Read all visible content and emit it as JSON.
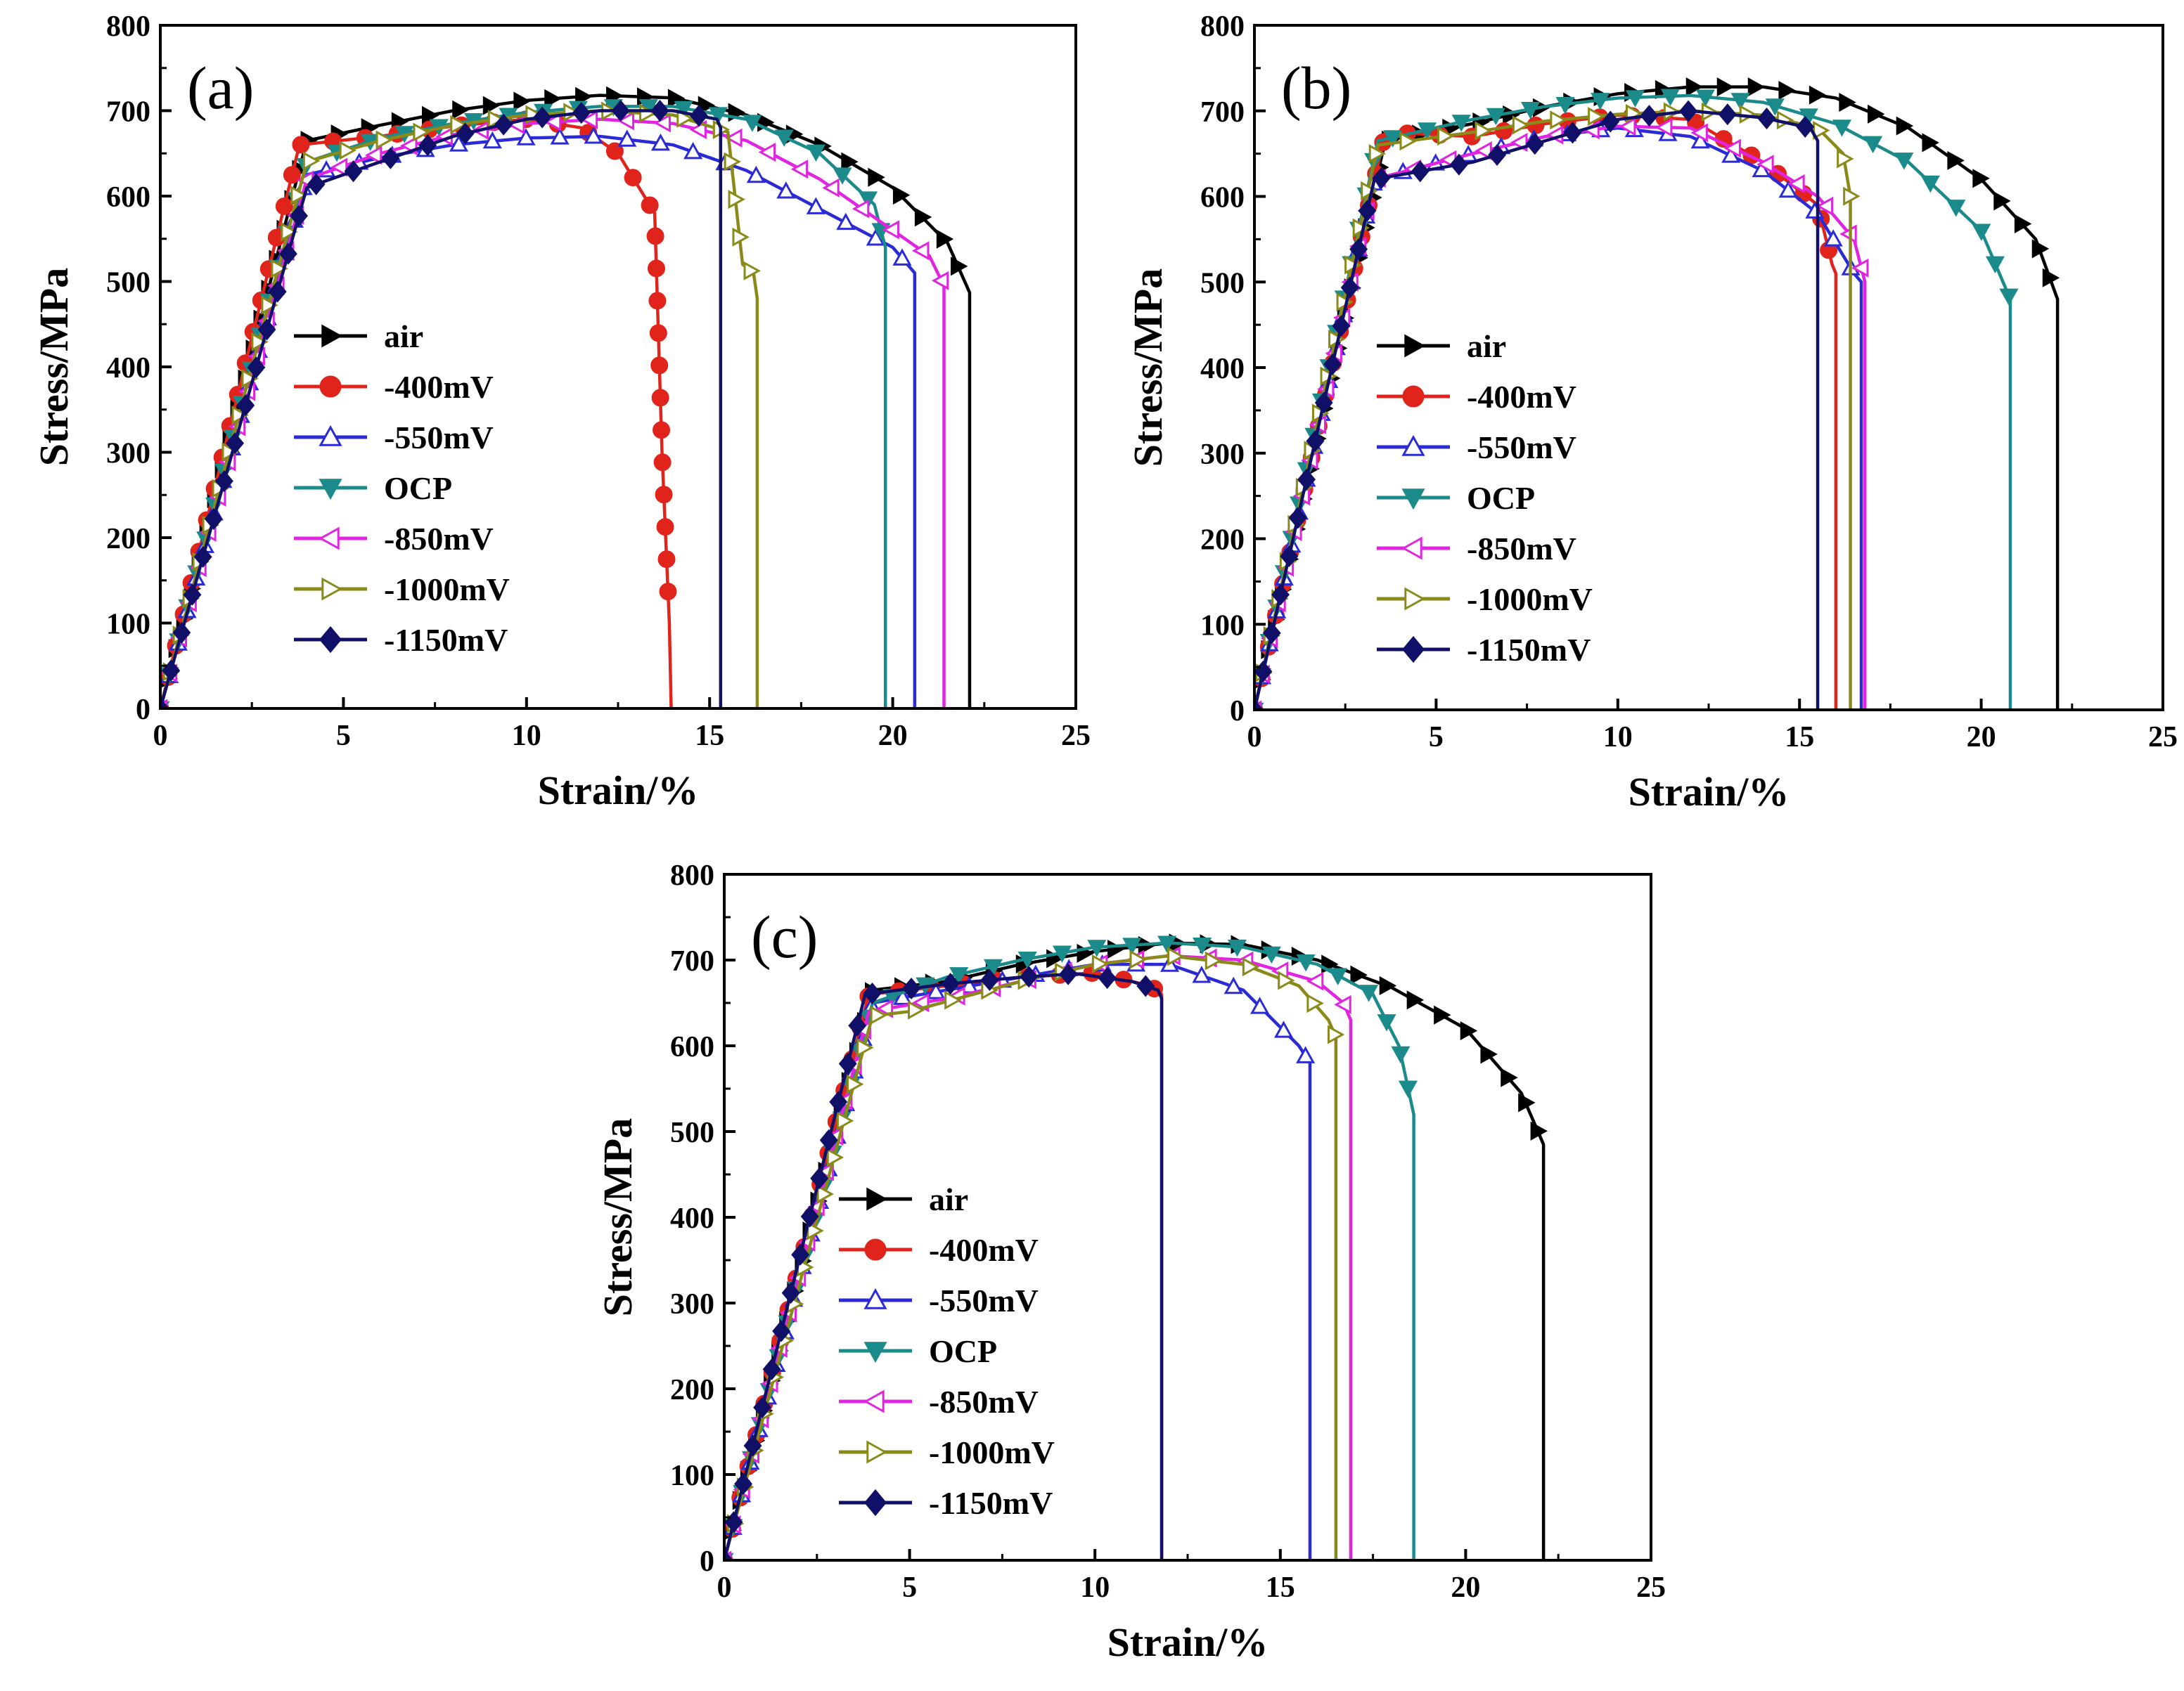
{
  "figure": {
    "background": "#ffffff"
  },
  "chart_data": [
    {
      "panel_label": "(a)",
      "type": "line",
      "xlabel": "Strain/%",
      "ylabel": "Stress/MPa",
      "xlim": [
        0,
        25
      ],
      "ylim": [
        0,
        800
      ],
      "xticks": [
        0,
        5,
        10,
        15,
        20,
        25
      ],
      "yticks": [
        0,
        100,
        200,
        300,
        400,
        500,
        600,
        700,
        800
      ],
      "grid": false,
      "legend": "center-left",
      "series": [
        {
          "name": "air",
          "color": "#000000",
          "marker": "triangle-right",
          "x": [
            0,
            4.0,
            6,
            8,
            10,
            12,
            14,
            16,
            18,
            20,
            21.5,
            22.1,
            22.1
          ],
          "y": [
            0,
            665,
            683,
            700,
            712,
            718,
            715,
            695,
            660,
            610,
            545,
            487,
            0
          ]
        },
        {
          "name": "-400mV",
          "color": "#e0241b",
          "marker": "circle",
          "x": [
            0,
            3.8,
            6,
            8,
            10,
            11.5,
            12.5,
            13.5,
            13.7,
            13.9,
            13.95
          ],
          "y": [
            0,
            660,
            670,
            682,
            690,
            680,
            650,
            580,
            300,
            100,
            0
          ]
        },
        {
          "name": "-550mV",
          "color": "#2b2bd6",
          "marker": "triangle-up-open",
          "x": [
            0,
            4.0,
            6,
            8,
            10,
            12,
            14,
            16,
            18,
            20,
            20.6,
            20.6
          ],
          "y": [
            0,
            625,
            645,
            660,
            668,
            670,
            660,
            630,
            585,
            540,
            510,
            0
          ]
        },
        {
          "name": "OCP",
          "color": "#1a8a8a",
          "marker": "triangle-down",
          "x": [
            0,
            4.0,
            6,
            8,
            10,
            12,
            14,
            16,
            18,
            19.5,
            19.8,
            19.8
          ],
          "y": [
            0,
            640,
            668,
            685,
            698,
            705,
            705,
            690,
            650,
            590,
            540,
            0
          ]
        },
        {
          "name": "-850mV",
          "color": "#e024e0",
          "marker": "triangle-left-open",
          "x": [
            0,
            4.0,
            6,
            8,
            10,
            12,
            14,
            16,
            18,
            20,
            21.0,
            21.4,
            21.4
          ],
          "y": [
            0,
            620,
            650,
            672,
            685,
            690,
            685,
            665,
            620,
            560,
            530,
            495,
            0
          ]
        },
        {
          "name": "-1000mV",
          "color": "#8a8a1a",
          "marker": "triangle-right-open",
          "x": [
            0,
            4.0,
            6,
            8,
            10,
            12,
            14,
            15.5,
            15.9,
            16.2,
            16.3,
            16.3
          ],
          "y": [
            0,
            640,
            665,
            683,
            695,
            700,
            695,
            675,
            520,
            510,
            480,
            0
          ]
        },
        {
          "name": "-1150mV",
          "color": "#101068",
          "marker": "diamond",
          "x": [
            0,
            4.0,
            6,
            8,
            10,
            12,
            14,
            15.2,
            15.3,
            15.3
          ],
          "y": [
            0,
            610,
            640,
            670,
            690,
            700,
            700,
            690,
            680,
            0
          ]
        }
      ]
    },
    {
      "panel_label": "(b)",
      "type": "line",
      "xlabel": "Strain/%",
      "ylabel": "Stress/MPa",
      "xlim": [
        0,
        25
      ],
      "ylim": [
        0,
        800
      ],
      "xticks": [
        0,
        5,
        10,
        15,
        20,
        25
      ],
      "yticks": [
        0,
        100,
        200,
        300,
        400,
        500,
        600,
        700,
        800
      ],
      "grid": false,
      "legend": "center-left",
      "series": [
        {
          "name": "air",
          "color": "#000000",
          "marker": "triangle-right",
          "x": [
            0,
            3.6,
            6,
            8,
            10,
            12,
            14,
            16,
            18,
            20,
            21.5,
            22.1,
            22.1
          ],
          "y": [
            0,
            665,
            685,
            705,
            720,
            728,
            728,
            715,
            680,
            620,
            550,
            480,
            0
          ]
        },
        {
          "name": "-400mV",
          "color": "#e0241b",
          "marker": "circle",
          "x": [
            0,
            3.6,
            6,
            8,
            10,
            12,
            14,
            15.5,
            15.9,
            16.0,
            16.0
          ],
          "y": [
            0,
            675,
            670,
            685,
            695,
            690,
            640,
            590,
            520,
            510,
            0
          ]
        },
        {
          "name": "-550mV",
          "color": "#2b2bd6",
          "marker": "triangle-up-open",
          "x": [
            0,
            3.3,
            6,
            8,
            10,
            12,
            14,
            15.5,
            16.5,
            16.7,
            16.7
          ],
          "y": [
            0,
            620,
            650,
            670,
            680,
            670,
            630,
            580,
            510,
            500,
            0
          ]
        },
        {
          "name": "OCP",
          "color": "#1a8a8a",
          "marker": "triangle-down",
          "x": [
            0,
            3.4,
            6,
            8,
            10,
            12,
            14,
            16,
            18,
            20,
            20.8,
            20.8
          ],
          "y": [
            0,
            665,
            690,
            705,
            715,
            718,
            710,
            685,
            640,
            560,
            480,
            0
          ]
        },
        {
          "name": "-850mV",
          "color": "#e024e0",
          "marker": "triangle-left-open",
          "x": [
            0,
            3.3,
            6,
            8,
            10,
            12,
            14,
            15.5,
            16.5,
            16.8,
            16.8
          ],
          "y": [
            0,
            620,
            650,
            670,
            682,
            680,
            640,
            600,
            550,
            500,
            0
          ]
        },
        {
          "name": "-1000mV",
          "color": "#8a8a1a",
          "marker": "triangle-right-open",
          "x": [
            0,
            3.4,
            6,
            8,
            10,
            12,
            14,
            15.5,
            16.2,
            16.4,
            16.4
          ],
          "y": [
            0,
            660,
            675,
            688,
            696,
            700,
            695,
            680,
            650,
            600,
            0
          ]
        },
        {
          "name": "-1150mV",
          "color": "#101068",
          "marker": "diamond",
          "x": [
            0,
            3.3,
            6,
            8,
            10,
            12,
            14,
            15.3,
            15.5,
            15.5
          ],
          "y": [
            0,
            620,
            640,
            665,
            690,
            700,
            692,
            680,
            665,
            0
          ]
        }
      ]
    },
    {
      "panel_label": "(c)",
      "type": "line",
      "xlabel": "Strain/%",
      "ylabel": "Stress/MPa",
      "xlim": [
        0,
        25
      ],
      "ylim": [
        0,
        800
      ],
      "xticks": [
        0,
        5,
        10,
        15,
        20,
        25
      ],
      "yticks": [
        0,
        100,
        200,
        300,
        400,
        500,
        600,
        700,
        800
      ],
      "grid": false,
      "legend": "center-left",
      "series": [
        {
          "name": "air",
          "color": "#000000",
          "marker": "triangle-right",
          "x": [
            0,
            4.0,
            6,
            8,
            10,
            12,
            14,
            16,
            18,
            20,
            21.5,
            22.1,
            22.1
          ],
          "y": [
            0,
            665,
            675,
            695,
            710,
            720,
            718,
            700,
            668,
            620,
            545,
            485,
            0
          ]
        },
        {
          "name": "-400mV",
          "color": "#e0241b",
          "marker": "circle",
          "x": [
            0,
            3.9,
            6,
            8,
            10,
            11.5,
            11.8,
            11.8
          ],
          "y": [
            0,
            660,
            670,
            680,
            685,
            670,
            660,
            0
          ]
        },
        {
          "name": "-550mV",
          "color": "#2b2bd6",
          "marker": "triangle-up-open",
          "x": [
            0,
            4.0,
            6,
            8,
            10,
            12,
            14,
            15.5,
            15.8,
            15.8
          ],
          "y": [
            0,
            650,
            665,
            680,
            695,
            695,
            665,
            600,
            580,
            0
          ]
        },
        {
          "name": "OCP",
          "color": "#1a8a8a",
          "marker": "triangle-down",
          "x": [
            0,
            4.0,
            6,
            8,
            10,
            12,
            14,
            16,
            17.5,
            18.2,
            18.6,
            18.6
          ],
          "y": [
            0,
            650,
            680,
            700,
            715,
            720,
            715,
            695,
            660,
            600,
            520,
            0
          ]
        },
        {
          "name": "-850mV",
          "color": "#e024e0",
          "marker": "triangle-left-open",
          "x": [
            0,
            3.9,
            6,
            8,
            10,
            12,
            14,
            16,
            16.7,
            16.9,
            16.9
          ],
          "y": [
            0,
            640,
            655,
            675,
            695,
            705,
            700,
            675,
            650,
            630,
            0
          ]
        },
        {
          "name": "-1000mV",
          "color": "#8a8a1a",
          "marker": "triangle-right-open",
          "x": [
            0,
            4.0,
            5.0,
            8,
            10,
            12,
            14,
            15.5,
            16.3,
            16.5,
            16.5
          ],
          "y": [
            0,
            635,
            640,
            675,
            695,
            705,
            695,
            670,
            630,
            610,
            0
          ]
        },
        {
          "name": "-1150mV",
          "color": "#101068",
          "marker": "diamond",
          "x": [
            0,
            3.8,
            6,
            8,
            9.5,
            11,
            11.7,
            11.8,
            11.8
          ],
          "y": [
            0,
            660,
            672,
            680,
            684,
            675,
            665,
            655,
            0
          ]
        }
      ]
    }
  ]
}
